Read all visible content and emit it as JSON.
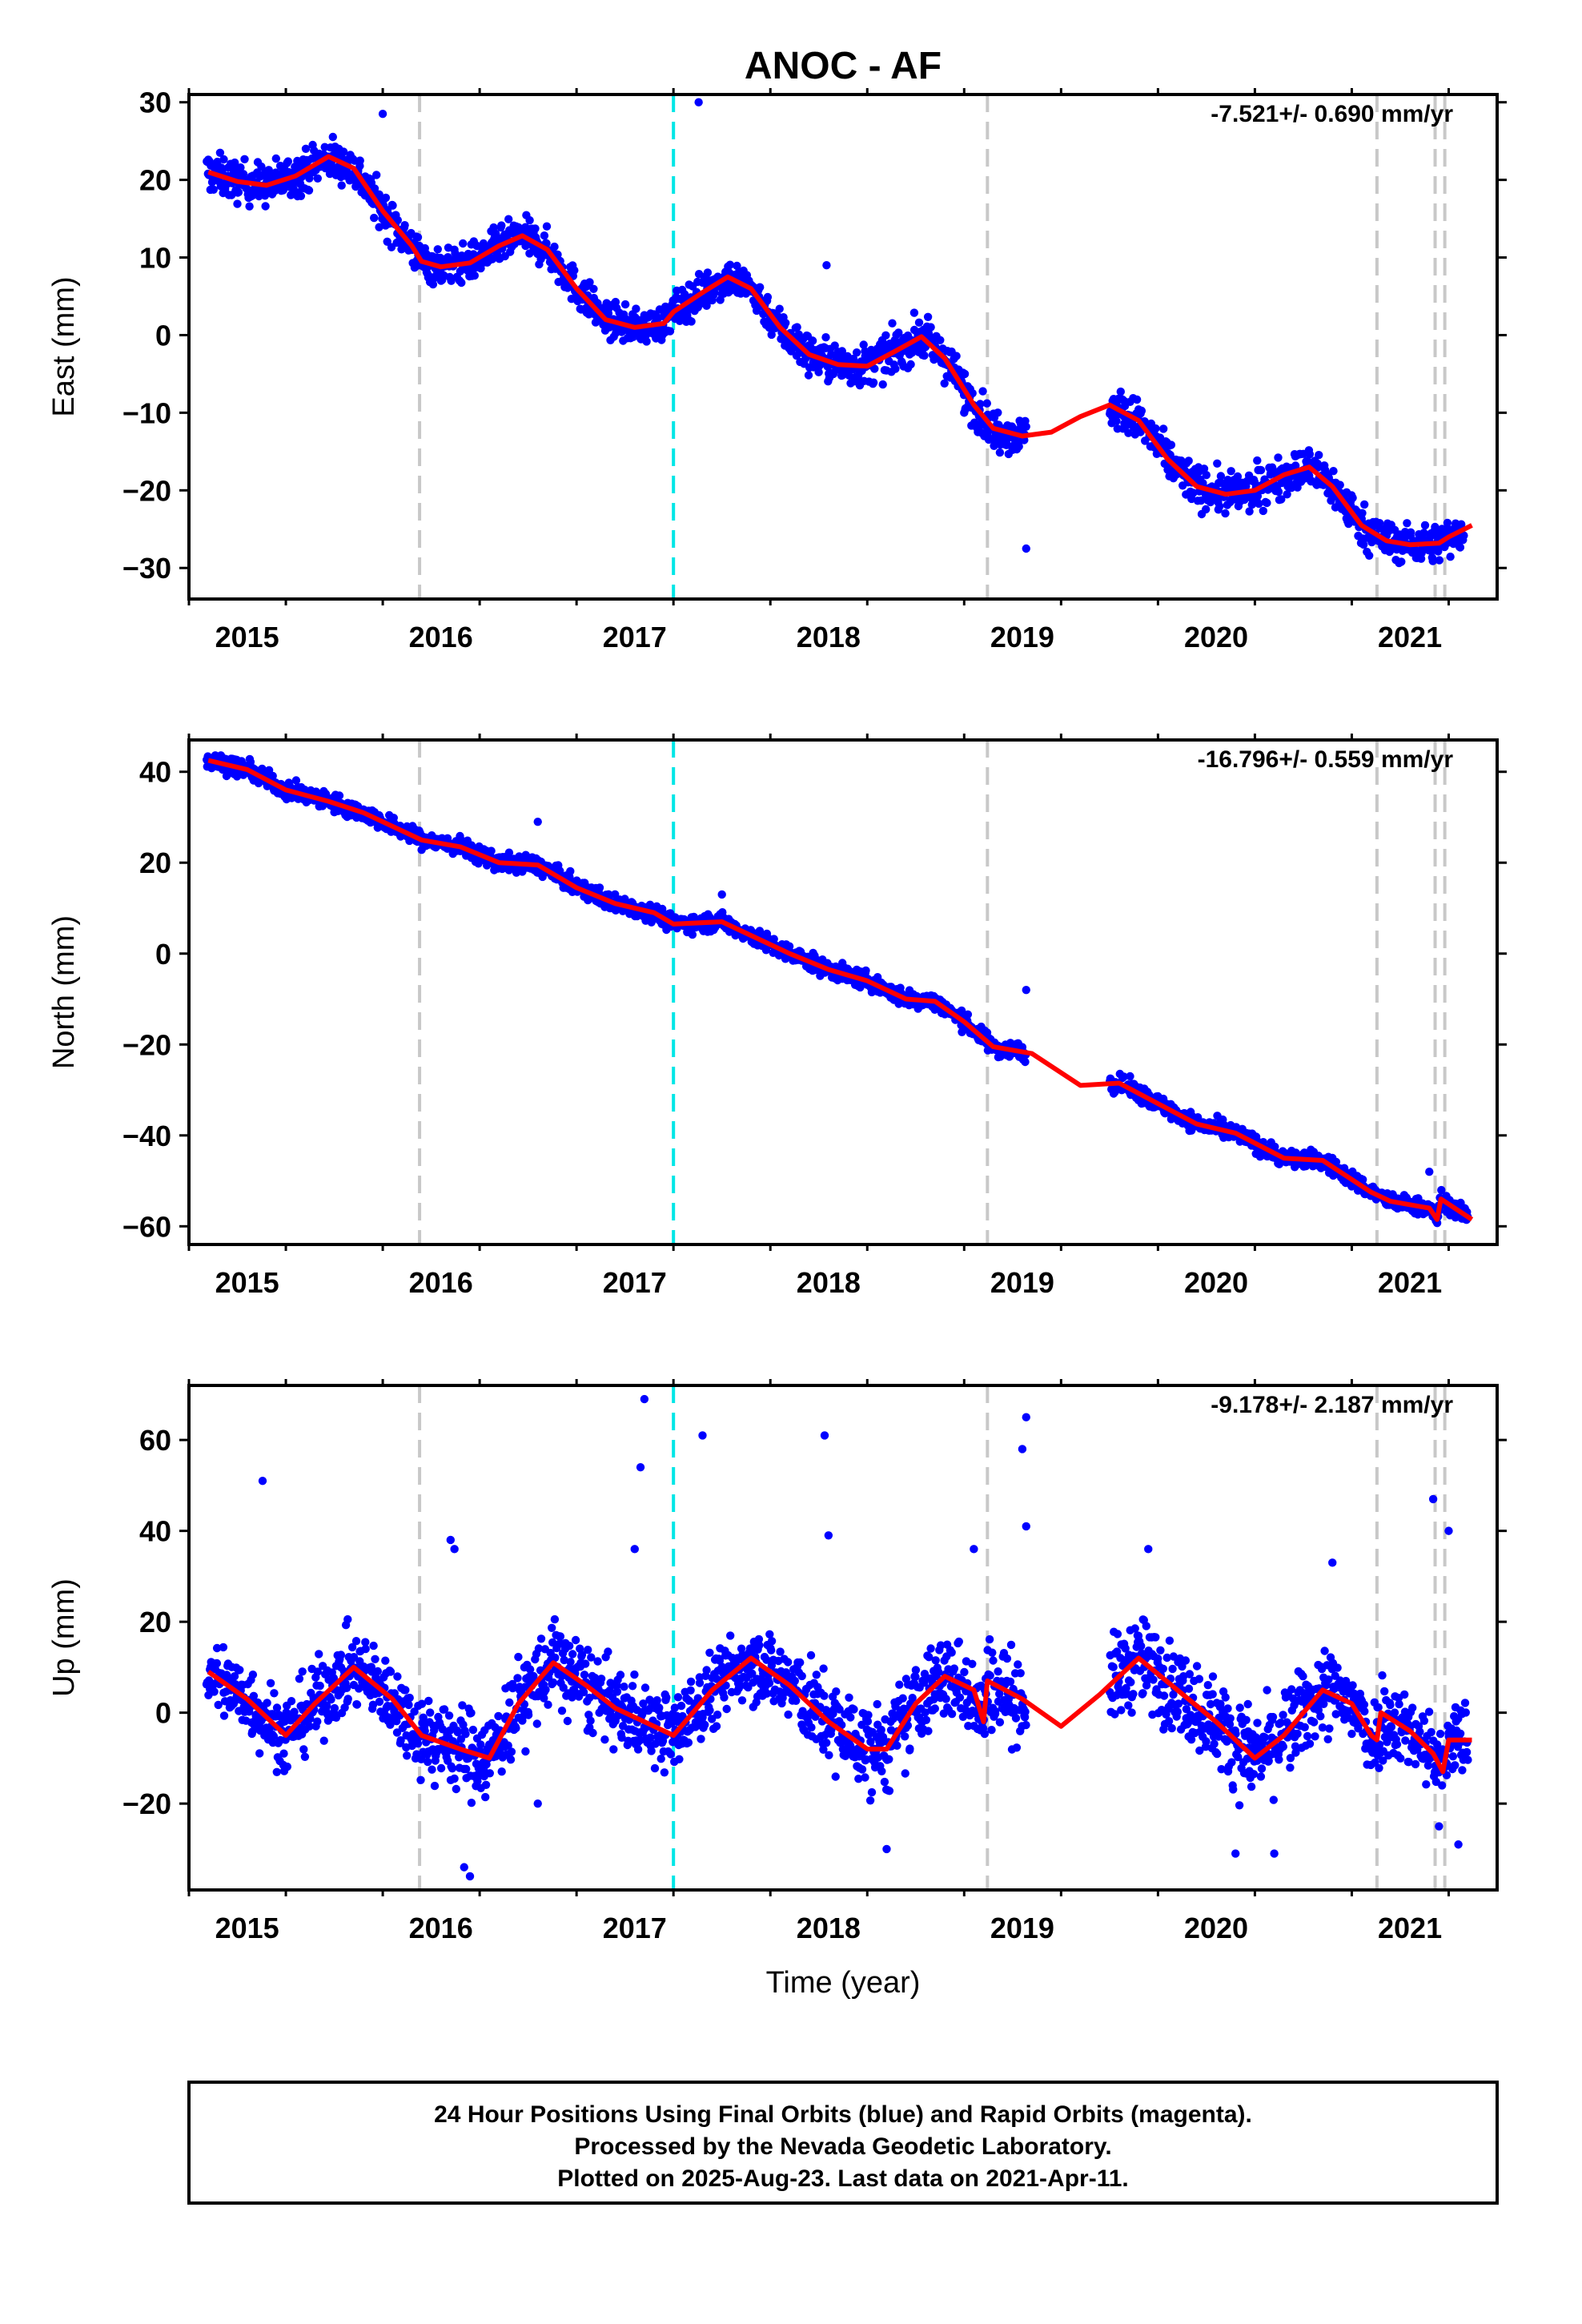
{
  "colors": {
    "final_orbits": "#0000ff",
    "model": "#ff0000",
    "event_gray": "#c8c8c8",
    "event_cyan": "#00e6e6",
    "frame": "#000000"
  },
  "chart_data": [
    {
      "type": "scatter",
      "title": "ANOC - AF",
      "ylabel": "East (mm)",
      "xlabel": "",
      "rate_label": "-7.521+/- 0.690 mm/yr",
      "xlim": [
        2014.7,
        2021.45
      ],
      "ylim": [
        -34,
        31
      ],
      "x_ticks": [
        2015,
        2016,
        2017,
        2018,
        2019,
        2020,
        2021
      ],
      "x_tick_labels": [
        "2015",
        "2016",
        "2017",
        "2018",
        "2019",
        "2020",
        "2021"
      ],
      "y_ticks": [
        -30,
        -20,
        -10,
        0,
        10,
        20,
        30
      ],
      "y_tick_labels": [
        "−30",
        "−20",
        "−10",
        "0",
        "10",
        "20",
        "30"
      ],
      "grid": false,
      "model_trend": [
        [
          2014.8,
          21
        ],
        [
          2014.95,
          19.8
        ],
        [
          2015.1,
          19.3
        ],
        [
          2015.25,
          20.5
        ],
        [
          2015.42,
          23
        ],
        [
          2015.55,
          21.5
        ],
        [
          2015.7,
          16
        ],
        [
          2015.85,
          11.5
        ],
        [
          2015.9,
          9.5
        ],
        [
          2016.0,
          8.8
        ],
        [
          2016.15,
          9.3
        ],
        [
          2016.3,
          11.5
        ],
        [
          2016.42,
          12.8
        ],
        [
          2016.55,
          11
        ],
        [
          2016.7,
          6
        ],
        [
          2016.85,
          2
        ],
        [
          2017.0,
          1
        ],
        [
          2017.15,
          1.5
        ],
        [
          2017.2,
          3
        ],
        [
          2017.35,
          5.5
        ],
        [
          2017.48,
          7.5
        ],
        [
          2017.6,
          6
        ],
        [
          2017.75,
          1
        ],
        [
          2017.9,
          -2.5
        ],
        [
          2018.05,
          -3.8
        ],
        [
          2018.2,
          -4
        ],
        [
          2018.35,
          -2
        ],
        [
          2018.48,
          -0.2
        ],
        [
          2018.6,
          -3
        ],
        [
          2018.75,
          -9
        ],
        [
          2018.85,
          -12
        ],
        [
          2019.0,
          -13
        ],
        [
          2019.15,
          -12.5
        ],
        [
          2019.3,
          -10.5
        ],
        [
          2019.45,
          -9
        ],
        [
          2019.6,
          -11
        ],
        [
          2019.75,
          -16
        ],
        [
          2019.9,
          -19.5
        ],
        [
          2020.05,
          -20.5
        ],
        [
          2020.2,
          -20
        ],
        [
          2020.35,
          -18
        ],
        [
          2020.48,
          -17
        ],
        [
          2020.6,
          -19.5
        ],
        [
          2020.75,
          -24.5
        ],
        [
          2020.88,
          -26.5
        ],
        [
          2021.0,
          -27
        ],
        [
          2021.15,
          -26.8
        ],
        [
          2021.2,
          -26
        ],
        [
          2021.32,
          -24.5
        ]
      ],
      "observations": {
        "segments": [
          [
            2014.79,
            2015.9,
            21,
            2.2
          ],
          [
            2015.9,
            2016.8,
            9,
            2.0
          ],
          [
            2016.8,
            2017.2,
            1.5,
            1.8
          ],
          [
            2017.2,
            2017.75,
            6,
            2.0
          ],
          [
            2017.75,
            2018.9,
            -3,
            2.2
          ],
          [
            2018.9,
            2019.02,
            -12,
            2.0
          ],
          [
            2019.45,
            2020.9,
            -17,
            2.2
          ],
          [
            2020.9,
            2021.28,
            -26.5,
            2.0
          ]
        ],
        "outliers": [
          [
            2017.33,
            30
          ],
          [
            2015.7,
            28.5
          ],
          [
            2019.02,
            -27.5
          ],
          [
            2017.99,
            9
          ],
          [
            2018.7,
            -10
          ]
        ]
      },
      "event_lines": [
        {
          "x": 2015.89,
          "color": "gray"
        },
        {
          "x": 2017.2,
          "color": "cyan"
        },
        {
          "x": 2018.82,
          "color": "gray"
        },
        {
          "x": 2020.83,
          "color": "gray"
        },
        {
          "x": 2021.13,
          "color": "gray"
        },
        {
          "x": 2021.18,
          "color": "gray"
        }
      ]
    },
    {
      "type": "scatter",
      "title": "",
      "ylabel": "North (mm)",
      "xlabel": "",
      "rate_label": "-16.796+/- 0.559 mm/yr",
      "xlim": [
        2014.7,
        2021.45
      ],
      "ylim": [
        -64,
        47
      ],
      "x_ticks": [
        2015,
        2016,
        2017,
        2018,
        2019,
        2020,
        2021
      ],
      "x_tick_labels": [
        "2015",
        "2016",
        "2017",
        "2018",
        "2019",
        "2020",
        "2021"
      ],
      "y_ticks": [
        -60,
        -40,
        -20,
        0,
        20,
        40
      ],
      "y_tick_labels": [
        "−60",
        "−40",
        "−20",
        "0",
        "20",
        "40"
      ],
      "grid": false,
      "model_trend": [
        [
          2014.8,
          42.5
        ],
        [
          2015.0,
          40.5
        ],
        [
          2015.2,
          36
        ],
        [
          2015.42,
          33.5
        ],
        [
          2015.6,
          31
        ],
        [
          2015.9,
          25
        ],
        [
          2016.1,
          23.5
        ],
        [
          2016.3,
          20
        ],
        [
          2016.5,
          19.5
        ],
        [
          2016.7,
          14.5
        ],
        [
          2016.9,
          11
        ],
        [
          2017.1,
          9
        ],
        [
          2017.2,
          6.5
        ],
        [
          2017.45,
          7
        ],
        [
          2017.6,
          4
        ],
        [
          2017.8,
          0
        ],
        [
          2018.0,
          -3.5
        ],
        [
          2018.2,
          -6
        ],
        [
          2018.4,
          -10
        ],
        [
          2018.55,
          -10.5
        ],
        [
          2018.7,
          -15
        ],
        [
          2018.85,
          -20.5
        ],
        [
          2019.05,
          -22
        ],
        [
          2019.3,
          -29
        ],
        [
          2019.5,
          -28.5
        ],
        [
          2019.7,
          -33
        ],
        [
          2019.9,
          -37.5
        ],
        [
          2020.1,
          -39.5
        ],
        [
          2020.35,
          -45
        ],
        [
          2020.55,
          -45.5
        ],
        [
          2020.8,
          -52.5
        ],
        [
          2020.9,
          -54.5
        ],
        [
          2021.1,
          -56
        ],
        [
          2021.14,
          -58.5
        ],
        [
          2021.16,
          -54
        ],
        [
          2021.32,
          -58.5
        ]
      ],
      "observations": {
        "segments": [
          [
            2014.79,
            2015.9,
            38,
            1.6
          ],
          [
            2015.9,
            2016.8,
            20,
            1.6
          ],
          [
            2016.8,
            2017.75,
            7,
            1.6
          ],
          [
            2017.75,
            2018.9,
            -8,
            1.6
          ],
          [
            2018.9,
            2019.02,
            -21,
            1.6
          ],
          [
            2019.45,
            2020.9,
            -38,
            1.6
          ],
          [
            2020.9,
            2021.3,
            -56,
            1.5
          ]
        ],
        "outliers": [
          [
            2019.02,
            -8
          ],
          [
            2016.5,
            29
          ],
          [
            2017.45,
            13
          ],
          [
            2021.1,
            -48
          ]
        ]
      },
      "event_lines": [
        {
          "x": 2015.89,
          "color": "gray"
        },
        {
          "x": 2017.2,
          "color": "cyan"
        },
        {
          "x": 2018.82,
          "color": "gray"
        },
        {
          "x": 2020.83,
          "color": "gray"
        },
        {
          "x": 2021.13,
          "color": "gray"
        },
        {
          "x": 2021.18,
          "color": "gray"
        }
      ]
    },
    {
      "type": "scatter",
      "title": "",
      "ylabel": "Up (mm)",
      "xlabel": "Time (year)",
      "rate_label": "-9.178+/- 2.187 mm/yr",
      "xlim": [
        2014.7,
        2021.45
      ],
      "ylim": [
        -39,
        72
      ],
      "x_ticks": [
        2015,
        2016,
        2017,
        2018,
        2019,
        2020,
        2021
      ],
      "x_tick_labels": [
        "2015",
        "2016",
        "2017",
        "2018",
        "2019",
        "2020",
        "2021"
      ],
      "y_ticks": [
        -20,
        0,
        20,
        40,
        60
      ],
      "y_tick_labels": [
        "−20",
        "0",
        "20",
        "40",
        "60"
      ],
      "grid": false,
      "model_trend": [
        [
          2014.8,
          9
        ],
        [
          2015.0,
          3
        ],
        [
          2015.2,
          -5
        ],
        [
          2015.35,
          2
        ],
        [
          2015.55,
          10
        ],
        [
          2015.75,
          3
        ],
        [
          2015.9,
          -5
        ],
        [
          2016.1,
          -8
        ],
        [
          2016.25,
          -10
        ],
        [
          2016.4,
          2
        ],
        [
          2016.58,
          11
        ],
        [
          2016.75,
          6
        ],
        [
          2016.9,
          1
        ],
        [
          2017.1,
          -3
        ],
        [
          2017.2,
          -5
        ],
        [
          2017.4,
          5
        ],
        [
          2017.6,
          12
        ],
        [
          2017.8,
          6
        ],
        [
          2018.0,
          -2
        ],
        [
          2018.2,
          -8
        ],
        [
          2018.3,
          -8
        ],
        [
          2018.45,
          2
        ],
        [
          2018.6,
          8
        ],
        [
          2018.75,
          5
        ],
        [
          2018.8,
          -2
        ],
        [
          2018.82,
          7
        ],
        [
          2019.0,
          3
        ],
        [
          2019.2,
          -3
        ],
        [
          2019.4,
          4
        ],
        [
          2019.6,
          12
        ],
        [
          2019.8,
          5
        ],
        [
          2020.0,
          -2
        ],
        [
          2020.2,
          -10
        ],
        [
          2020.35,
          -5
        ],
        [
          2020.55,
          5
        ],
        [
          2020.7,
          2
        ],
        [
          2020.8,
          -5
        ],
        [
          2020.83,
          -6
        ],
        [
          2020.85,
          0
        ],
        [
          2021.0,
          -4
        ],
        [
          2021.12,
          -9
        ],
        [
          2021.17,
          -13
        ],
        [
          2021.2,
          -6
        ],
        [
          2021.32,
          -6
        ]
      ],
      "observations": {
        "segments": [
          [
            2014.79,
            2015.9,
            2,
            7
          ],
          [
            2015.9,
            2016.8,
            0,
            8
          ],
          [
            2016.8,
            2017.75,
            1,
            7
          ],
          [
            2017.75,
            2018.9,
            -1,
            8
          ],
          [
            2018.9,
            2019.02,
            4,
            8
          ],
          [
            2019.45,
            2020.9,
            1,
            8
          ],
          [
            2020.9,
            2021.3,
            -5,
            7
          ]
        ],
        "outliers": [
          [
            2017.05,
            69
          ],
          [
            2017.03,
            54
          ],
          [
            2017.35,
            61
          ],
          [
            2017.98,
            61
          ],
          [
            2019.02,
            65
          ],
          [
            2019.0,
            58
          ],
          [
            2019.02,
            41
          ],
          [
            2015.08,
            51
          ],
          [
            2016.05,
            38
          ],
          [
            2016.07,
            36
          ],
          [
            2021.12,
            47
          ],
          [
            2021.2,
            40
          ],
          [
            2018.0,
            39
          ],
          [
            2016.15,
            -36
          ],
          [
            2016.12,
            -34
          ],
          [
            2018.3,
            -30
          ],
          [
            2020.1,
            -31
          ],
          [
            2020.3,
            -31
          ],
          [
            2021.25,
            -29
          ],
          [
            2021.15,
            -25
          ],
          [
            2016.5,
            -20
          ],
          [
            2018.75,
            36
          ],
          [
            2019.65,
            36
          ],
          [
            2017.0,
            36
          ],
          [
            2020.6,
            33
          ]
        ]
      },
      "event_lines": [
        {
          "x": 2015.89,
          "color": "gray"
        },
        {
          "x": 2017.2,
          "color": "cyan"
        },
        {
          "x": 2018.82,
          "color": "gray"
        },
        {
          "x": 2020.83,
          "color": "gray"
        },
        {
          "x": 2021.13,
          "color": "gray"
        },
        {
          "x": 2021.18,
          "color": "gray"
        }
      ]
    }
  ],
  "footer": {
    "line1": "24 Hour Positions Using Final Orbits (blue) and Rapid Orbits (magenta).",
    "line2": "Processed by the Nevada Geodetic Laboratory.",
    "line3": "Plotted on 2025-Aug-23. Last data on 2021-Apr-11."
  }
}
